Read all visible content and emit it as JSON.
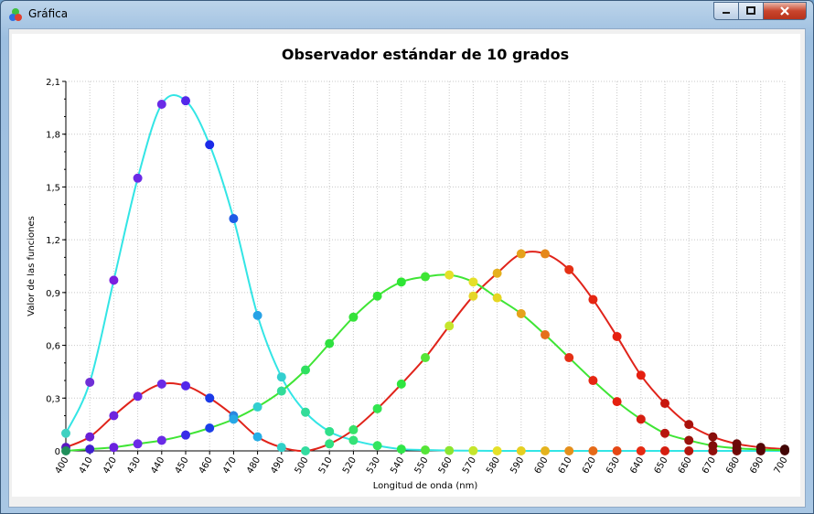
{
  "window": {
    "title": "Gráfica"
  },
  "chart_data": {
    "type": "line",
    "title": "Observador estándar de 10 grados",
    "xlabel": "Longitud de onda (nm)",
    "ylabel": "Valor de las funciones",
    "xlim": [
      400,
      700
    ],
    "ylim": [
      0,
      2.1
    ],
    "grid": true,
    "x_ticks": [
      "400",
      "410",
      "420",
      "430",
      "440",
      "450",
      "460",
      "470",
      "480",
      "490",
      "500",
      "510",
      "520",
      "530",
      "540",
      "550",
      "560",
      "570",
      "580",
      "590",
      "600",
      "610",
      "620",
      "630",
      "640",
      "650",
      "660",
      "670",
      "680",
      "690",
      "700"
    ],
    "y_ticks": [
      "0",
      "0,3",
      "0,6",
      "0,9",
      "1,2",
      "1,5",
      "1,8",
      "2,1"
    ],
    "x": [
      400,
      410,
      420,
      430,
      440,
      450,
      460,
      470,
      480,
      490,
      500,
      510,
      520,
      530,
      540,
      550,
      560,
      570,
      580,
      590,
      600,
      610,
      620,
      630,
      640,
      650,
      660,
      670,
      680,
      690,
      700
    ],
    "series": [
      {
        "line_color": "#33e5e5",
        "values": [
          0.1,
          0.39,
          0.97,
          1.55,
          1.97,
          1.99,
          1.74,
          1.32,
          0.77,
          0.42,
          0.22,
          0.11,
          0.06,
          0.03,
          0.01,
          0.005,
          0.002,
          0.001,
          0,
          0,
          0,
          0,
          0,
          0,
          0,
          0,
          0,
          0,
          0,
          0,
          0
        ],
        "point_colors": [
          "#3fd1c1",
          "#6f2fd6",
          "#7a1fe0",
          "#6a2ae6",
          "#6a2be6",
          "#5328ea",
          "#1b2ae8",
          "#1f5ae6",
          "#27a2e6",
          "#33cfcf",
          "#33dc99",
          "#2fe08a",
          "#35e277",
          "#32e560",
          "#2ee548",
          "#55e537",
          "#8be531",
          "#c5e52c",
          "#e5e028",
          "#e5d022",
          "#e5b31e",
          "#e58f1b",
          "#e56a18",
          "#e54815",
          "#e52a12",
          "#d51e10",
          "#b3160e",
          "#91100c",
          "#740c0a",
          "#5e0808",
          "#4b0606"
        ]
      },
      {
        "line_color": "#e0231a",
        "values": [
          0.02,
          0.08,
          0.2,
          0.31,
          0.38,
          0.37,
          0.3,
          0.2,
          0.08,
          0.02,
          0.0,
          0.04,
          0.12,
          0.24,
          0.38,
          0.53,
          0.71,
          0.88,
          1.01,
          1.12,
          1.12,
          1.03,
          0.86,
          0.65,
          0.43,
          0.27,
          0.15,
          0.08,
          0.04,
          0.02,
          0.01
        ],
        "point_colors": [
          "#5a18c0",
          "#6a20d6",
          "#6e22de",
          "#6a28e2",
          "#6a2be6",
          "#5328ea",
          "#1b3ae8",
          "#2a86e0",
          "#27aee6",
          "#30d0c8",
          "#33dca0",
          "#2fe080",
          "#35e268",
          "#32e550",
          "#2ee540",
          "#55e537",
          "#c5e52c",
          "#e5d628",
          "#e5b01e",
          "#e5a21c",
          "#e5881b",
          "#e53015",
          "#e52612",
          "#e52010",
          "#e51f10",
          "#c8170e",
          "#a8120c",
          "#880e0a",
          "#6e0a08",
          "#520606",
          "#400404"
        ]
      },
      {
        "line_color": "#3fe535",
        "values": [
          0.0,
          0.01,
          0.02,
          0.04,
          0.06,
          0.09,
          0.13,
          0.18,
          0.25,
          0.34,
          0.46,
          0.61,
          0.76,
          0.88,
          0.96,
          0.99,
          1.0,
          0.96,
          0.87,
          0.78,
          0.66,
          0.53,
          0.4,
          0.28,
          0.18,
          0.1,
          0.06,
          0.03,
          0.015,
          0.008,
          0.004
        ],
        "point_colors": [
          "#1f8f5a",
          "#3f1fcf",
          "#6a22de",
          "#6a2be6",
          "#6a2be6",
          "#3a2ce8",
          "#1b3ee8",
          "#27a8e6",
          "#33cfcf",
          "#33dc99",
          "#2fe060",
          "#2fe040",
          "#35e23a",
          "#32e535",
          "#2ee535",
          "#3ee535",
          "#e5e028",
          "#e5e028",
          "#e5d622",
          "#e5a21c",
          "#e5701b",
          "#e53015",
          "#e52612",
          "#e52010",
          "#d51e10",
          "#b8160e",
          "#9a120c",
          "#820e0a",
          "#6a0a08",
          "#560606",
          "#420404"
        ]
      }
    ]
  }
}
